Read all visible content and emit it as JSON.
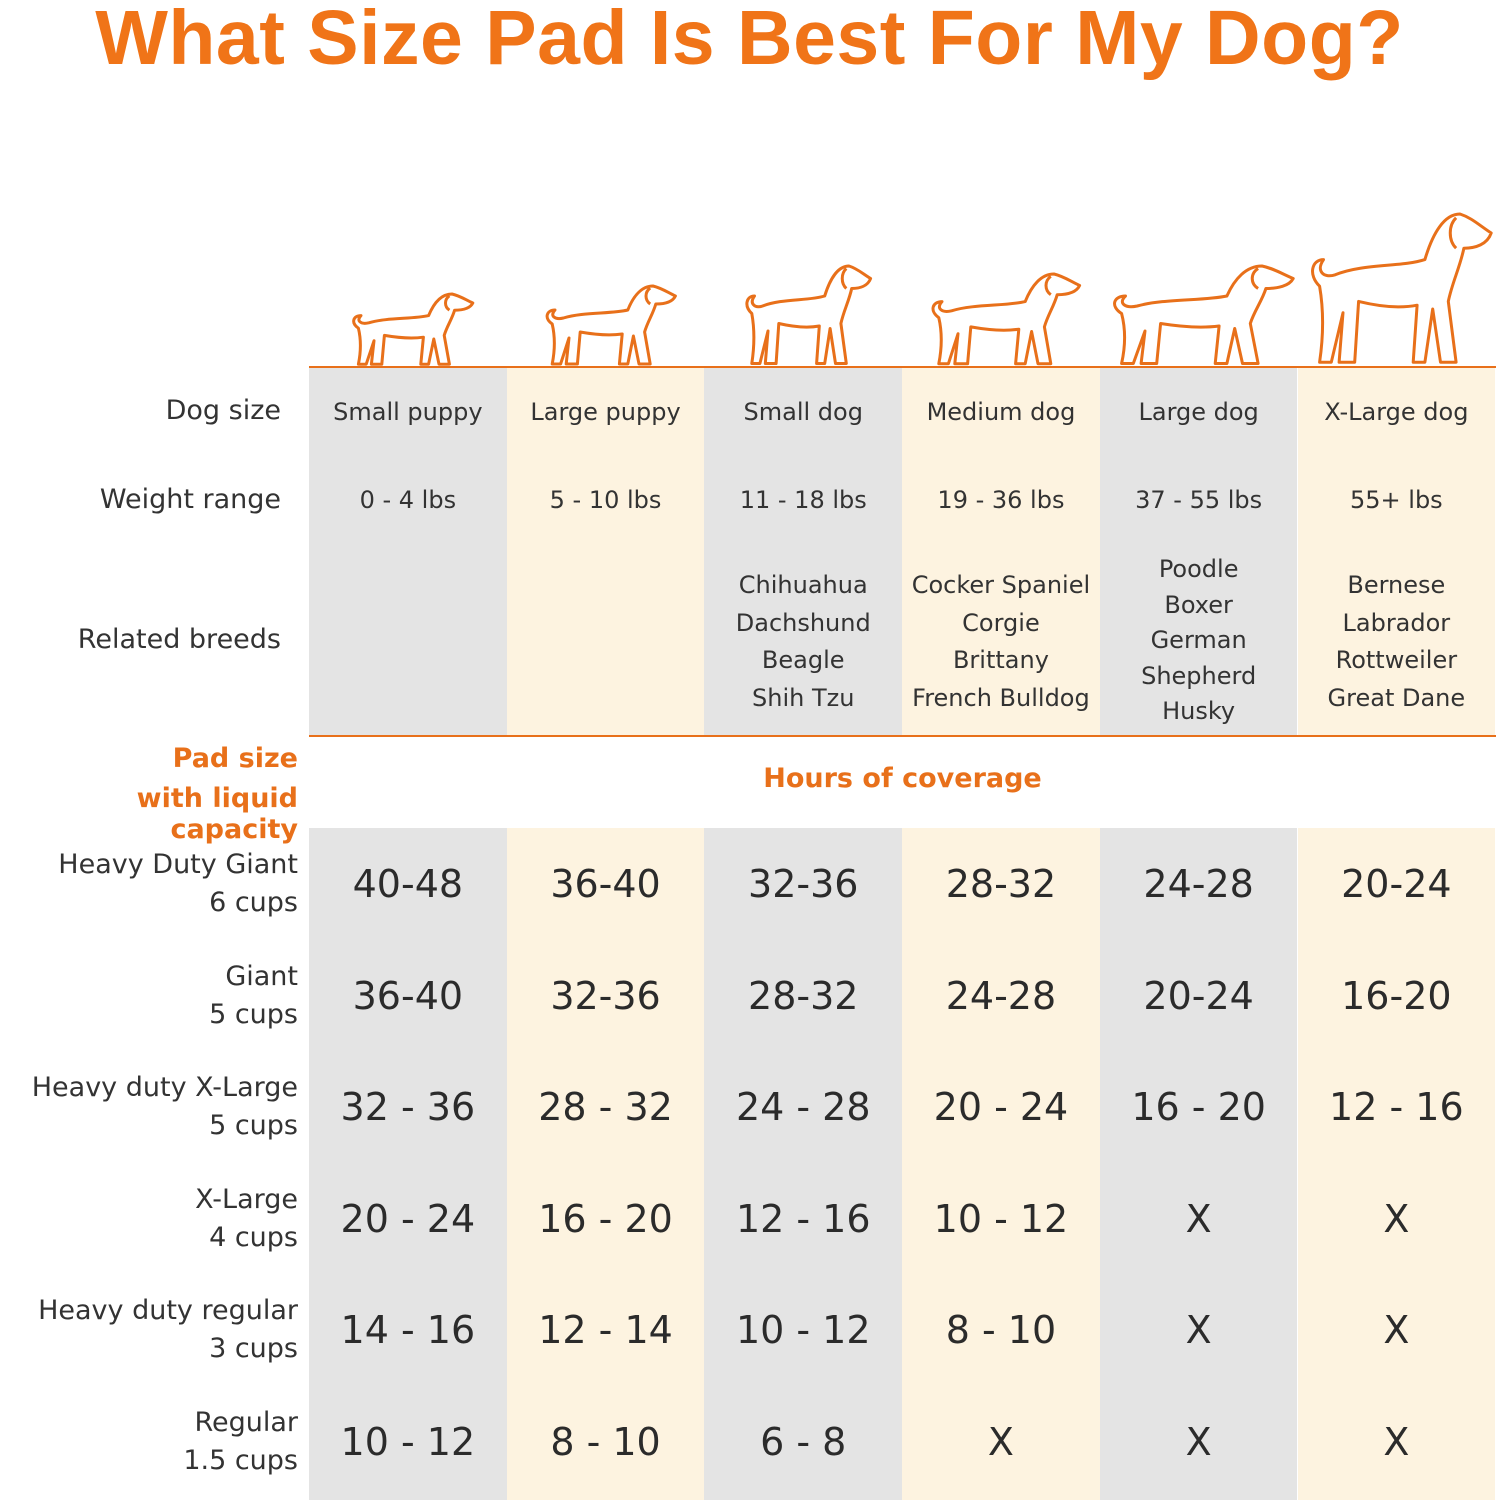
{
  "title": "What Size Pad Is Best For My Dog?",
  "colors": {
    "accent": "#e8701a",
    "gray_column": "#e4e4e4",
    "cream_column": "#fdf3e0"
  },
  "row_labels": {
    "dog_size": "Dog size",
    "weight_range": "Weight range",
    "related_breeds": "Related breeds"
  },
  "pad_header": {
    "line1": "Pad size",
    "line2": "with liquid capacity",
    "coverage": "Hours of coverage"
  },
  "columns": [
    {
      "icon": "puppy-small-icon",
      "size": "Small puppy",
      "weight": "0 - 4 lbs",
      "breeds": []
    },
    {
      "icon": "puppy-large-icon",
      "size": "Large puppy",
      "weight": "5 - 10 lbs",
      "breeds": []
    },
    {
      "icon": "dog-small-icon",
      "size": "Small dog",
      "weight": "11 - 18 lbs",
      "breeds": [
        "Chihuahua",
        "Dachshund",
        "Beagle",
        "Shih Tzu"
      ]
    },
    {
      "icon": "dog-medium-icon",
      "size": "Medium dog",
      "weight": "19 - 36 lbs",
      "breeds": [
        "Cocker Spaniel",
        "Corgie",
        "Brittany",
        "French Bulldog"
      ]
    },
    {
      "icon": "dog-large-icon",
      "size": "Large dog",
      "weight": "37 - 55 lbs",
      "breeds": [
        "Poodle",
        "Boxer",
        "German",
        "Shepherd",
        "Husky"
      ]
    },
    {
      "icon": "dog-xlarge-icon",
      "size": "X-Large dog",
      "weight": "55+ lbs",
      "breeds": [
        "Bernese",
        "Labrador",
        "Rottweiler",
        "Great Dane"
      ]
    }
  ],
  "pads": [
    {
      "name": "Heavy Duty Giant",
      "capacity": "6 cups",
      "hours": [
        "40-48",
        "36-40",
        "32-36",
        "28-32",
        "24-28",
        "20-24"
      ]
    },
    {
      "name": "Giant",
      "capacity": "5 cups",
      "hours": [
        "36-40",
        "32-36",
        "28-32",
        "24-28",
        "20-24",
        "16-20"
      ]
    },
    {
      "name": "Heavy duty X-Large",
      "capacity": "5 cups",
      "hours": [
        "32 - 36",
        "28 - 32",
        "24 - 28",
        "20 - 24",
        "16 - 20",
        "12 - 16"
      ]
    },
    {
      "name": "X-Large",
      "capacity": "4 cups",
      "hours": [
        "20 - 24",
        "16 - 20",
        "12 - 16",
        "10 - 12",
        "X",
        "X"
      ]
    },
    {
      "name": "Heavy duty regular",
      "capacity": "3 cups",
      "hours": [
        "14 - 16",
        "12 - 14",
        "10 - 12",
        "8 - 10",
        "X",
        "X"
      ]
    },
    {
      "name": "Regular",
      "capacity": "1.5 cups",
      "hours": [
        "10 - 12",
        "8 - 10",
        "6 - 8",
        "X",
        "X",
        "X"
      ]
    }
  ]
}
